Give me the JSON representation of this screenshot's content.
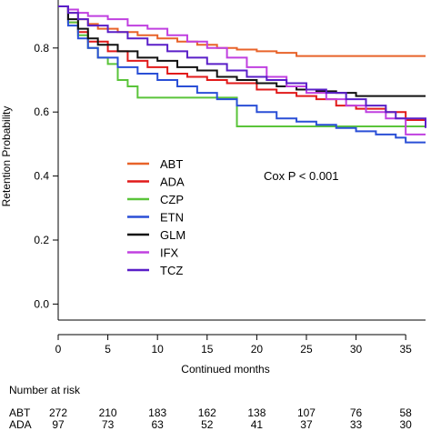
{
  "chart_data": {
    "type": "line",
    "step": true,
    "ylabel": "Retention Probability",
    "xlabel": "Continued months",
    "xlim": [
      0,
      37
    ],
    "ylim": [
      -0.05,
      0.95
    ],
    "xticks": [
      0,
      5,
      10,
      15,
      20,
      25,
      30,
      35
    ],
    "xtick_labels": [
      "0",
      "5",
      "10",
      "15",
      "20",
      "25",
      "30",
      "35"
    ],
    "yticks": [
      0.0,
      0.2,
      0.4,
      0.6,
      0.8
    ],
    "ytick_labels": [
      "0.0",
      "0.2",
      "0.4",
      "0.6",
      "0.8"
    ],
    "annotation": "Cox P < 0.001",
    "legend_position": "center-left",
    "series": [
      {
        "name": "ABT",
        "color": "#e8632a",
        "x": [
          0,
          1,
          2,
          3,
          4,
          6,
          8,
          10,
          12,
          14,
          16,
          18,
          20,
          22,
          24,
          37
        ],
        "y": [
          0.93,
          0.91,
          0.89,
          0.875,
          0.86,
          0.85,
          0.84,
          0.83,
          0.82,
          0.81,
          0.8,
          0.795,
          0.79,
          0.785,
          0.775,
          0.775
        ]
      },
      {
        "name": "ADA",
        "color": "#e11a1a",
        "x": [
          0,
          1,
          2,
          3,
          5,
          7,
          9,
          11,
          13,
          15,
          17,
          20,
          22,
          24,
          26,
          28,
          30,
          33,
          35,
          37
        ],
        "y": [
          0.93,
          0.88,
          0.85,
          0.82,
          0.79,
          0.76,
          0.74,
          0.72,
          0.71,
          0.7,
          0.69,
          0.67,
          0.66,
          0.65,
          0.64,
          0.62,
          0.61,
          0.6,
          0.575,
          0.575
        ]
      },
      {
        "name": "CZP",
        "color": "#5ac43a",
        "x": [
          0,
          1,
          2,
          3,
          4,
          5,
          6,
          7,
          8,
          18,
          37
        ],
        "y": [
          0.93,
          0.88,
          0.84,
          0.8,
          0.77,
          0.75,
          0.7,
          0.68,
          0.645,
          0.555,
          0.555
        ]
      },
      {
        "name": "ETN",
        "color": "#2a4fd6",
        "x": [
          0,
          1,
          2,
          3,
          4,
          6,
          8,
          10,
          12,
          14,
          16,
          18,
          20,
          22,
          24,
          26,
          28,
          30,
          32,
          34,
          35,
          37
        ],
        "y": [
          0.93,
          0.87,
          0.83,
          0.8,
          0.77,
          0.74,
          0.72,
          0.7,
          0.68,
          0.66,
          0.64,
          0.62,
          0.6,
          0.58,
          0.57,
          0.56,
          0.55,
          0.54,
          0.53,
          0.52,
          0.505,
          0.505
        ]
      },
      {
        "name": "GLM",
        "color": "#111111",
        "x": [
          0,
          1,
          2,
          3,
          4,
          6,
          8,
          10,
          12,
          14,
          16,
          18,
          20,
          22,
          24,
          26,
          28,
          30,
          37
        ],
        "y": [
          0.93,
          0.89,
          0.86,
          0.83,
          0.81,
          0.79,
          0.77,
          0.76,
          0.74,
          0.73,
          0.71,
          0.7,
          0.69,
          0.68,
          0.67,
          0.665,
          0.66,
          0.65,
          0.65
        ]
      },
      {
        "name": "IFX",
        "color": "#c040e0",
        "x": [
          0,
          1,
          2,
          3,
          5,
          7,
          9,
          11,
          13,
          15,
          17,
          19,
          21,
          23,
          25,
          27,
          29,
          31,
          33,
          35,
          37
        ],
        "y": [
          0.93,
          0.92,
          0.91,
          0.9,
          0.89,
          0.87,
          0.86,
          0.84,
          0.82,
          0.8,
          0.77,
          0.74,
          0.71,
          0.68,
          0.66,
          0.64,
          0.62,
          0.6,
          0.58,
          0.53,
          0.53
        ]
      },
      {
        "name": "TCZ",
        "color": "#5a1fc8",
        "x": [
          0,
          1,
          2,
          3,
          5,
          7,
          9,
          11,
          13,
          15,
          17,
          19,
          21,
          23,
          25,
          27,
          29,
          31,
          33,
          34,
          37
        ],
        "y": [
          0.93,
          0.91,
          0.89,
          0.87,
          0.85,
          0.83,
          0.81,
          0.79,
          0.77,
          0.75,
          0.73,
          0.71,
          0.7,
          0.69,
          0.67,
          0.66,
          0.64,
          0.62,
          0.6,
          0.58,
          0.55
        ]
      }
    ],
    "risk_table": {
      "title": "Number at risk",
      "rows": [
        {
          "name": "ABT",
          "values": [
            "272",
            "210",
            "183",
            "162",
            "138",
            "107",
            "76",
            "58"
          ]
        },
        {
          "name": "ADA",
          "values": [
            "97",
            "73",
            "63",
            "52",
            "41",
            "37",
            "33",
            "30"
          ]
        }
      ]
    }
  }
}
